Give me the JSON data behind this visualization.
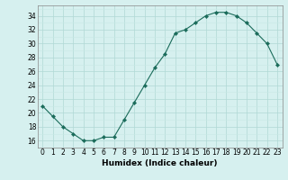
{
  "x": [
    0,
    1,
    2,
    3,
    4,
    5,
    6,
    7,
    8,
    9,
    10,
    11,
    12,
    13,
    14,
    15,
    16,
    17,
    18,
    19,
    20,
    21,
    22,
    23
  ],
  "y": [
    21,
    19.5,
    18,
    17,
    16,
    16,
    16.5,
    16.5,
    19,
    21.5,
    24,
    26.5,
    28.5,
    31.5,
    32,
    33,
    34,
    34.5,
    34.5,
    34,
    33,
    31.5,
    30,
    27
  ],
  "line_color": "#1a6b5a",
  "marker": "D",
  "marker_size": 2.2,
  "bg_color": "#d6f0ef",
  "grid_color_major": "#b0d8d5",
  "grid_color_minor": "#c8e8e6",
  "xlabel": "Humidex (Indice chaleur)",
  "xlabel_fontsize": 6.5,
  "tick_fontsize": 5.5,
  "xlim": [
    -0.5,
    23.5
  ],
  "ylim": [
    15,
    35.5
  ],
  "yticks": [
    16,
    18,
    20,
    22,
    24,
    26,
    28,
    30,
    32,
    34
  ],
  "xticks": [
    0,
    1,
    2,
    3,
    4,
    5,
    6,
    7,
    8,
    9,
    10,
    11,
    12,
    13,
    14,
    15,
    16,
    17,
    18,
    19,
    20,
    21,
    22,
    23
  ]
}
